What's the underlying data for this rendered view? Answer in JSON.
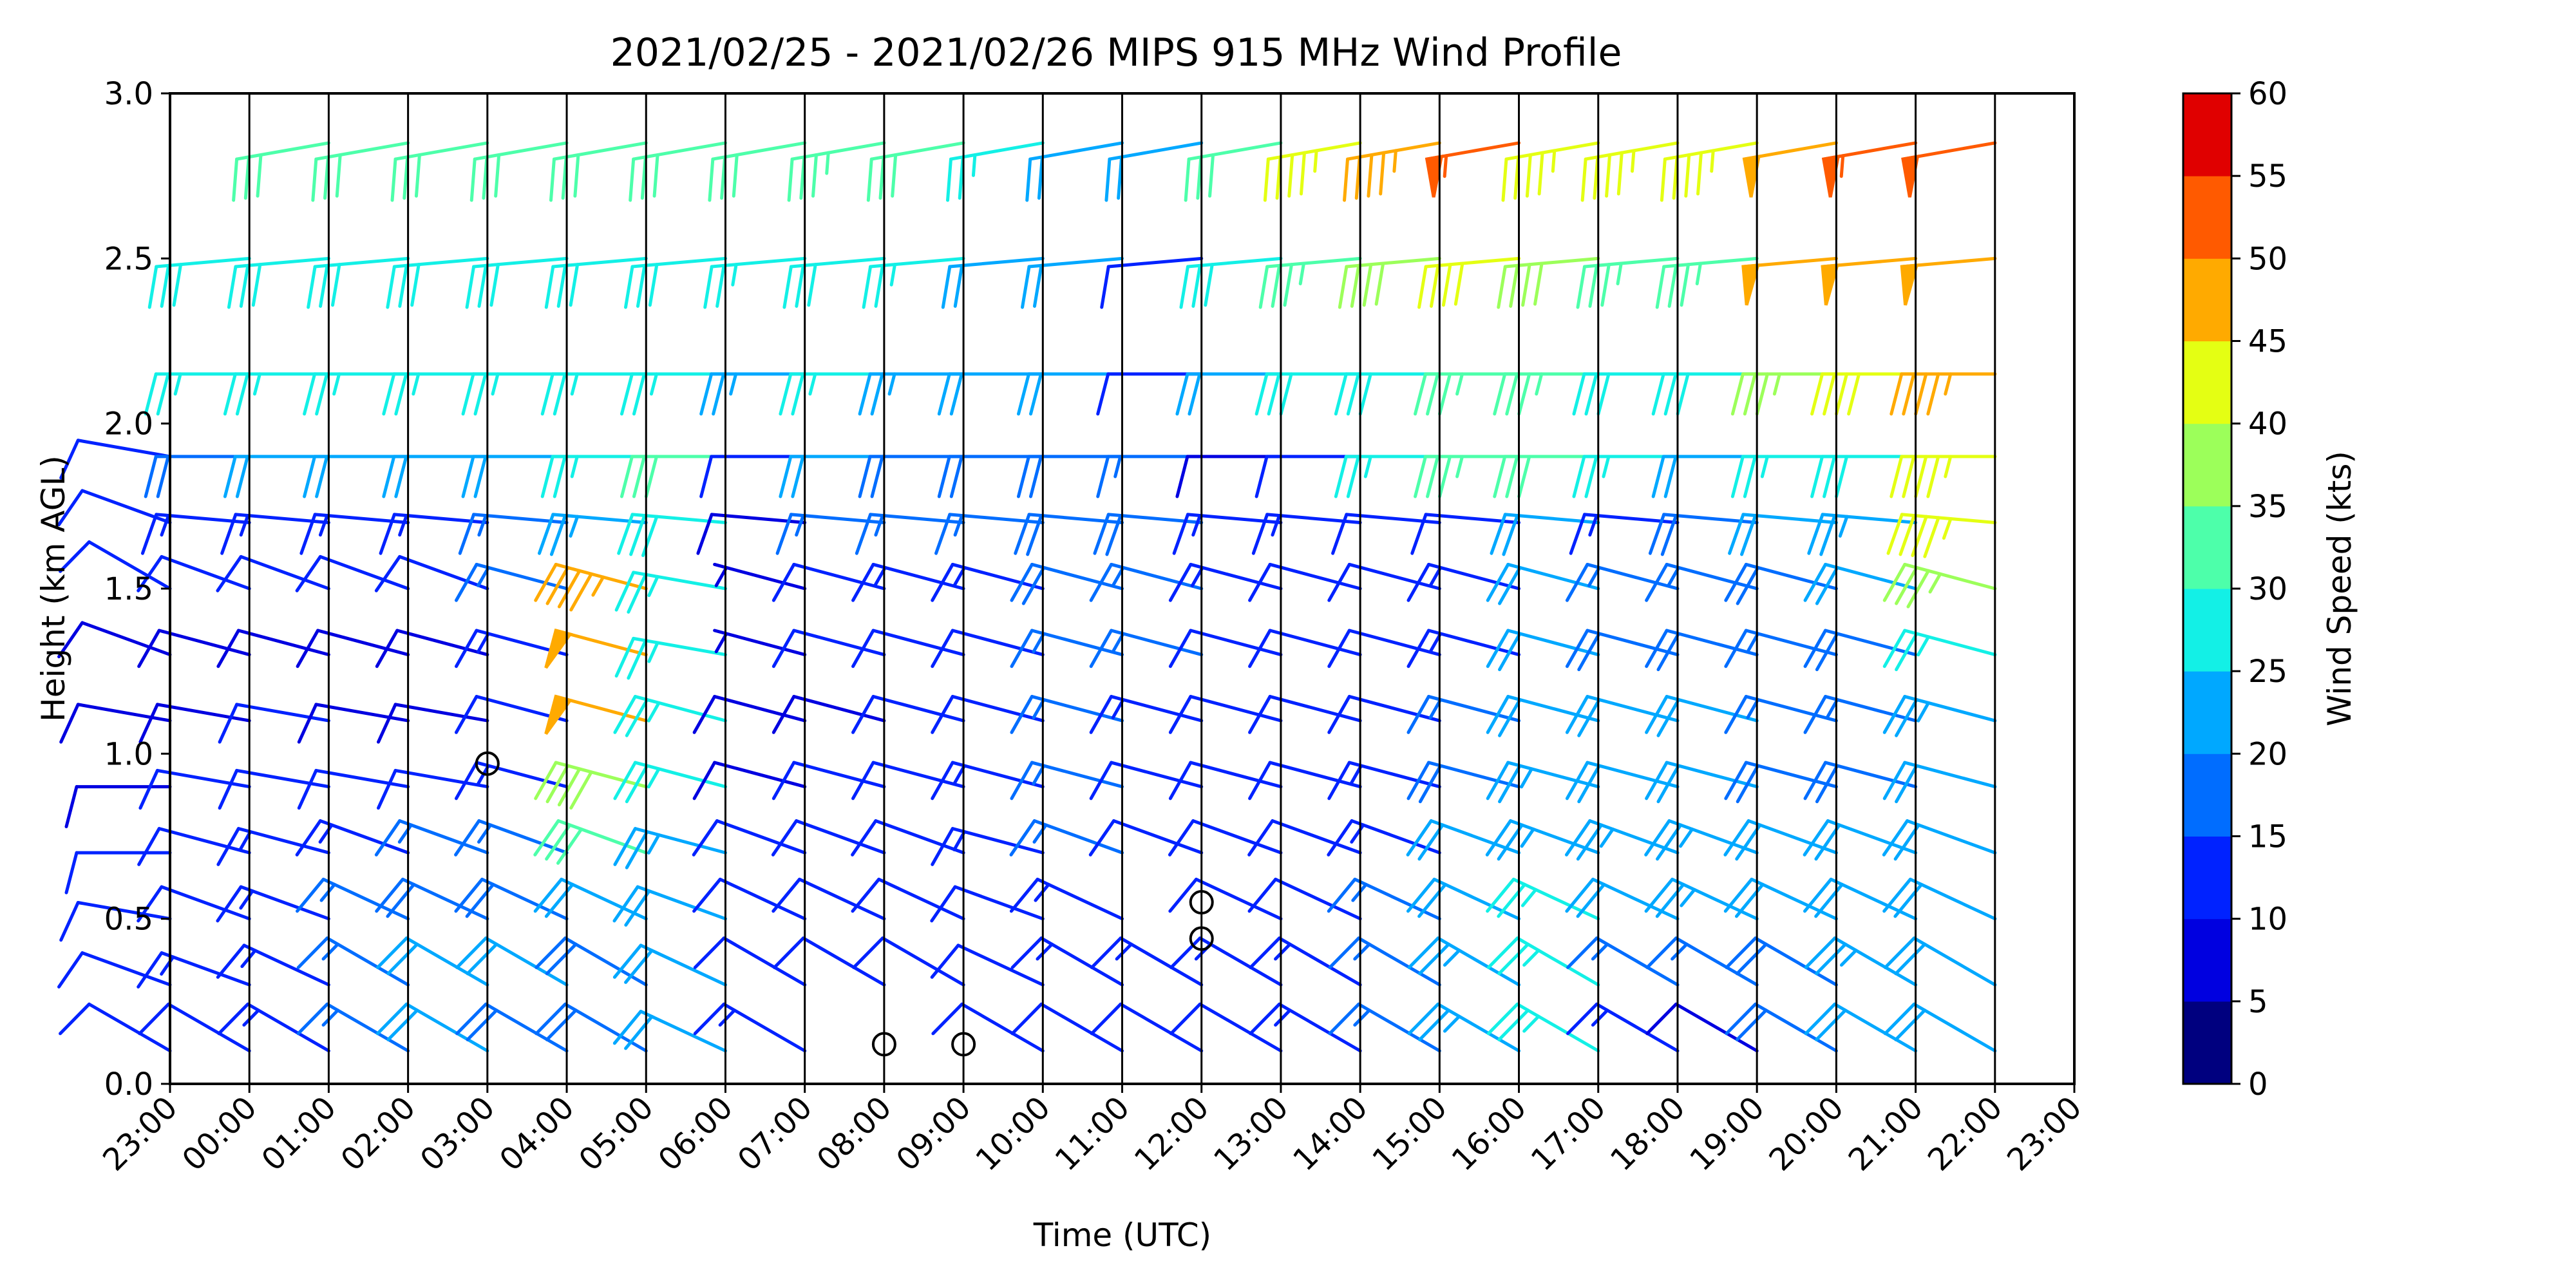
{
  "chart_data": {
    "type": "wind-barb",
    "title": "2021/02/25 - 2021/02/26 MIPS 915 MHz Wind Profile",
    "xlabel": "Time (UTC)",
    "ylabel": "Height (km AGL)",
    "ylim": [
      0,
      3.0
    ],
    "y_ticks": [
      "0.0",
      "0.5",
      "1.0",
      "1.5",
      "2.0",
      "2.5",
      "3.0"
    ],
    "x_ticks": [
      "23:00",
      "00:00",
      "01:00",
      "02:00",
      "03:00",
      "04:00",
      "05:00",
      "06:00",
      "07:00",
      "08:00",
      "09:00",
      "10:00",
      "11:00",
      "12:00",
      "13:00",
      "14:00",
      "15:00",
      "16:00",
      "17:00",
      "18:00",
      "19:00",
      "20:00",
      "21:00",
      "22:00",
      "23:00"
    ],
    "colorbar": {
      "label": "Wind Speed (kts)",
      "ticks": [
        "0",
        "5",
        "10",
        "15",
        "20",
        "25",
        "30",
        "35",
        "40",
        "45",
        "50",
        "55",
        "60"
      ],
      "colors": [
        "#00007f",
        "#0000f1",
        "#004cff",
        "#00b0ff",
        "#29ffce",
        "#7dff7a",
        "#ceff29",
        "#ffc400",
        "#ff6800",
        "#f10800",
        "#7f0000"
      ],
      "bin_colors": [
        "#00007f",
        "#0000e0",
        "#0022ff",
        "#006dff",
        "#00a8ff",
        "#13f0e6",
        "#4dffaa",
        "#9cff5a",
        "#e4ff13",
        "#ffaa00",
        "#ff5a00",
        "#e00000"
      ]
    },
    "grid": "vertical lines at each hour",
    "annotations": "calm-wind circles at 03:00 ~0.97 km, 08:00 ~0.12 km, 09:00 ~0.12 km, 12:00 ~0.44 km and ~0.55 km",
    "series": [
      {
        "time": "23:00",
        "heights_km": [
          0.1,
          0.3,
          0.5,
          0.7,
          0.9,
          1.1,
          1.3,
          1.5,
          1.7,
          1.9
        ],
        "speeds_kts": [
          12,
          11,
          10,
          10,
          9,
          8,
          9,
          10,
          11,
          12
        ],
        "dirs_deg": [
          300,
          290,
          280,
          270,
          270,
          280,
          290,
          300,
          290,
          280
        ]
      },
      {
        "time": "00:00",
        "heights_km": [
          0.1,
          0.3,
          0.5,
          0.7,
          0.9,
          1.1,
          1.3,
          1.5,
          1.7,
          1.9,
          2.15,
          2.5
        ],
        "speeds_kts": [
          12,
          13,
          12,
          11,
          10,
          9,
          8,
          10,
          14,
          18,
          25,
          28
        ],
        "dirs_deg": [
          300,
          290,
          290,
          285,
          280,
          280,
          285,
          290,
          275,
          270,
          270,
          265
        ]
      },
      {
        "time": "01:00",
        "heights_km": [
          0.1,
          0.3,
          0.5,
          0.7,
          0.9,
          1.1,
          1.3,
          1.5,
          1.7,
          1.9,
          2.15,
          2.5,
          2.85
        ],
        "speeds_kts": [
          13,
          14,
          14,
          13,
          12,
          10,
          9,
          10,
          14,
          20,
          26,
          29,
          31
        ],
        "dirs_deg": [
          300,
          295,
          290,
          285,
          280,
          280,
          285,
          290,
          275,
          270,
          270,
          265,
          260
        ]
      },
      {
        "time": "02:00",
        "heights_km": [
          0.1,
          0.3,
          0.5,
          0.7,
          0.9,
          1.1,
          1.3,
          1.5,
          1.7,
          1.9,
          2.15,
          2.5,
          2.85
        ],
        "speeds_kts": [
          16,
          17,
          15,
          14,
          12,
          9,
          8,
          10,
          14,
          20,
          26,
          29,
          31
        ],
        "dirs_deg": [
          300,
          300,
          295,
          290,
          280,
          280,
          285,
          290,
          275,
          270,
          270,
          265,
          260
        ]
      },
      {
        "time": "03:00",
        "heights_km": [
          0.1,
          0.3,
          0.5,
          0.7,
          0.9,
          1.1,
          1.3,
          1.5,
          1.7,
          1.9,
          2.15,
          2.5,
          2.85
        ],
        "speeds_kts": [
          21,
          20,
          18,
          16,
          12,
          8,
          9,
          11,
          13,
          20,
          26,
          29,
          31
        ],
        "dirs_deg": [
          300,
          300,
          295,
          290,
          280,
          280,
          285,
          290,
          275,
          270,
          270,
          265,
          260
        ]
      },
      {
        "time": "04:00",
        "heights_km": [
          0.1,
          0.3,
          0.5,
          0.7,
          0.9,
          1.1,
          1.3,
          1.5,
          1.7,
          1.9,
          2.15,
          2.5,
          2.85
        ],
        "speeds_kts": [
          19,
          20,
          18,
          17,
          14,
          12,
          14,
          16,
          16,
          21,
          26,
          29,
          31
        ],
        "dirs_deg": [
          300,
          300,
          295,
          290,
          285,
          285,
          285,
          285,
          275,
          270,
          270,
          265,
          260
        ]
      },
      {
        "time": "05:00",
        "heights_km": [
          0.1,
          0.3,
          0.5,
          0.7,
          0.9,
          1.1,
          1.3,
          1.5,
          1.7,
          1.9,
          2.15,
          2.5,
          2.85
        ],
        "speeds_kts": [
          18,
          19,
          22,
          30,
          38,
          49,
          48,
          45,
          24,
          26,
          27,
          29,
          31
        ],
        "dirs_deg": [
          300,
          300,
          295,
          290,
          285,
          285,
          285,
          285,
          275,
          270,
          270,
          265,
          260
        ]
      },
      {
        "time": "06:00",
        "heights_km": [
          0.1,
          0.3,
          0.5,
          0.7,
          0.9,
          1.1,
          1.3,
          1.5,
          1.7,
          1.9,
          2.15,
          2.5,
          2.85
        ],
        "speeds_kts": [
          20,
          21,
          22,
          24,
          27,
          26,
          25,
          27,
          28,
          30,
          27,
          29,
          31
        ],
        "dirs_deg": [
          295,
          295,
          290,
          285,
          285,
          285,
          280,
          280,
          275,
          270,
          270,
          265,
          260
        ]
      },
      {
        "time": "07:00",
        "heights_km": [
          0.1,
          0.3,
          0.5,
          0.7,
          0.9,
          1.1,
          1.3,
          1.5,
          1.7,
          1.9,
          2.15,
          2.5,
          2.85
        ],
        "speeds_kts": [
          13,
          12,
          10,
          11,
          9,
          8,
          7,
          6,
          9,
          12,
          24,
          27,
          32
        ],
        "dirs_deg": [
          300,
          300,
          295,
          290,
          285,
          285,
          285,
          285,
          275,
          270,
          270,
          265,
          260
        ]
      },
      {
        "time": "08:00",
        "heights_km": [
          0.3,
          0.5,
          0.7,
          0.9,
          1.1,
          1.3,
          1.5,
          1.7,
          1.9,
          2.15,
          2.5,
          2.85
        ],
        "speeds_kts": [
          12,
          12,
          11,
          10,
          9,
          10,
          12,
          15,
          20,
          25,
          28,
          33
        ],
        "dirs_deg": [
          300,
          295,
          290,
          285,
          285,
          285,
          285,
          275,
          270,
          270,
          265,
          260
        ]
      },
      {
        "time": "09:00",
        "heights_km": [
          0.3,
          0.5,
          0.7,
          0.9,
          1.1,
          1.3,
          1.5,
          1.7,
          1.9,
          2.15,
          2.5,
          2.85
        ],
        "speeds_kts": [
          11,
          12,
          12,
          11,
          10,
          11,
          13,
          16,
          19,
          23,
          27,
          31
        ],
        "dirs_deg": [
          300,
          295,
          290,
          285,
          285,
          285,
          285,
          275,
          270,
          270,
          265,
          260
        ]
      },
      {
        "time": "10:00",
        "heights_km": [
          0.1,
          0.3,
          0.5,
          0.7,
          0.9,
          1.1,
          1.3,
          1.5,
          1.7,
          1.9,
          2.15,
          2.5,
          2.85
        ],
        "speeds_kts": [
          11,
          12,
          12,
          13,
          13,
          12,
          12,
          13,
          15,
          18,
          20,
          22,
          25
        ],
        "dirs_deg": [
          300,
          295,
          290,
          285,
          285,
          285,
          285,
          285,
          275,
          270,
          270,
          265,
          260
        ]
      },
      {
        "time": "11:00",
        "heights_km": [
          0.1,
          0.3,
          0.5,
          0.7,
          0.9,
          1.1,
          1.3,
          1.5,
          1.7,
          1.9,
          2.15,
          2.5,
          2.85
        ],
        "speeds_kts": [
          12,
          13,
          14,
          15,
          17,
          17,
          17,
          18,
          19,
          19,
          21,
          20,
          22
        ],
        "dirs_deg": [
          300,
          300,
          295,
          290,
          285,
          285,
          285,
          285,
          275,
          270,
          270,
          265,
          260
        ]
      },
      {
        "time": "12:00",
        "heights_km": [
          0.1,
          0.3,
          0.7,
          0.9,
          1.1,
          1.3,
          1.5,
          1.7,
          1.9,
          2.15,
          2.5,
          2.85
        ],
        "speeds_kts": [
          12,
          13,
          12,
          12,
          13,
          15,
          17,
          18,
          15,
          12,
          10,
          20
        ],
        "dirs_deg": [
          300,
          300,
          290,
          285,
          285,
          285,
          285,
          275,
          270,
          270,
          265,
          260
        ]
      },
      {
        "time": "13:00",
        "heights_km": [
          0.1,
          0.3,
          0.5,
          0.7,
          0.9,
          1.1,
          1.3,
          1.5,
          1.7,
          1.9,
          2.15,
          2.5,
          2.85
        ],
        "speeds_kts": [
          12,
          13,
          11,
          11,
          11,
          12,
          12,
          13,
          14,
          9,
          20,
          28,
          32
        ],
        "dirs_deg": [
          300,
          300,
          295,
          290,
          285,
          285,
          285,
          285,
          275,
          270,
          270,
          265,
          260
        ]
      },
      {
        "time": "14:00",
        "heights_km": [
          0.1,
          0.3,
          0.5,
          0.7,
          0.9,
          1.1,
          1.3,
          1.5,
          1.7,
          1.9,
          2.15,
          2.5,
          2.85
        ],
        "speeds_kts": [
          13,
          13,
          12,
          11,
          11,
          12,
          12,
          12,
          13,
          11,
          28,
          34,
          44
        ],
        "dirs_deg": [
          300,
          300,
          295,
          290,
          285,
          285,
          285,
          285,
          275,
          270,
          270,
          265,
          260
        ]
      },
      {
        "time": "15:00",
        "heights_km": [
          0.1,
          0.3,
          0.5,
          0.7,
          0.9,
          1.1,
          1.3,
          1.5,
          1.7,
          1.9,
          2.15,
          2.5,
          2.85
        ],
        "speeds_kts": [
          17,
          17,
          16,
          14,
          13,
          12,
          11,
          11,
          10,
          25,
          28,
          38,
          47
        ],
        "dirs_deg": [
          300,
          300,
          295,
          290,
          285,
          285,
          285,
          285,
          275,
          270,
          270,
          265,
          260
        ]
      },
      {
        "time": "16:00",
        "heights_km": [
          0.1,
          0.3,
          0.5,
          0.7,
          0.9,
          1.1,
          1.3,
          1.5,
          1.7,
          1.9,
          2.15,
          2.5,
          2.85
        ],
        "speeds_kts": [
          23,
          23,
          22,
          20,
          18,
          15,
          14,
          13,
          11,
          33,
          33,
          42,
          53
        ],
        "dirs_deg": [
          300,
          300,
          295,
          290,
          285,
          285,
          285,
          285,
          275,
          270,
          270,
          265,
          260
        ]
      },
      {
        "time": "17:00",
        "heights_km": [
          0.1,
          0.3,
          0.5,
          0.7,
          0.9,
          1.1,
          1.3,
          1.5,
          1.7,
          1.9,
          2.15,
          2.5,
          2.85
        ],
        "speeds_kts": [
          25,
          25,
          25,
          24,
          23,
          22,
          22,
          22,
          20,
          30,
          33,
          38,
          43
        ],
        "dirs_deg": [
          300,
          300,
          295,
          290,
          285,
          285,
          285,
          285,
          275,
          270,
          270,
          265,
          260
        ]
      },
      {
        "time": "18:00",
        "heights_km": [
          0.1,
          0.3,
          0.5,
          0.7,
          0.9,
          1.1,
          1.3,
          1.5,
          1.7,
          1.9,
          2.15,
          2.5,
          2.85
        ],
        "speeds_kts": [
          13,
          17,
          22,
          24,
          22,
          20,
          18,
          15,
          13,
          26,
          28,
          34,
          43
        ],
        "dirs_deg": [
          300,
          300,
          295,
          290,
          285,
          285,
          285,
          285,
          275,
          270,
          270,
          265,
          260
        ]
      },
      {
        "time": "19:00",
        "heights_km": [
          0.1,
          0.3,
          0.5,
          0.7,
          0.9,
          1.1,
          1.3,
          1.5,
          1.7,
          1.9,
          2.15,
          2.5,
          2.85
        ],
        "speeds_kts": [
          9,
          15,
          23,
          24,
          22,
          20,
          18,
          17,
          19,
          22,
          28,
          34,
          44
        ],
        "dirs_deg": [
          300,
          300,
          295,
          290,
          285,
          285,
          285,
          285,
          275,
          270,
          270,
          265,
          260
        ]
      },
      {
        "time": "20:00",
        "heights_km": [
          0.1,
          0.3,
          0.5,
          0.7,
          0.9,
          1.1,
          1.3,
          1.5,
          1.7,
          1.9,
          2.15,
          2.5,
          2.85
        ],
        "speeds_kts": [
          18,
          19,
          20,
          20,
          18,
          17,
          16,
          19,
          22,
          26,
          37,
          48,
          48
        ],
        "dirs_deg": [
          300,
          300,
          295,
          290,
          285,
          285,
          285,
          285,
          275,
          270,
          270,
          265,
          260
        ]
      },
      {
        "time": "21:00",
        "heights_km": [
          0.1,
          0.3,
          0.5,
          0.7,
          0.9,
          1.1,
          1.3,
          1.5,
          1.7,
          1.9,
          2.15,
          2.5,
          2.85
        ],
        "speeds_kts": [
          22,
          23,
          22,
          20,
          18,
          16,
          18,
          20,
          24,
          28,
          40,
          48,
          53
        ],
        "dirs_deg": [
          300,
          300,
          295,
          290,
          285,
          285,
          285,
          285,
          275,
          270,
          270,
          265,
          260
        ]
      },
      {
        "time": "22:00",
        "heights_km": [
          0.1,
          0.3,
          0.5,
          0.7,
          0.9,
          1.1,
          1.3,
          1.5,
          1.7,
          1.9,
          2.15,
          2.5,
          2.85
        ],
        "speeds_kts": [
          20,
          20,
          21,
          21,
          22,
          24,
          26,
          36,
          43,
          44,
          45,
          48,
          52
        ],
        "dirs_deg": [
          300,
          300,
          295,
          290,
          285,
          285,
          285,
          285,
          275,
          270,
          270,
          265,
          260
        ]
      }
    ]
  }
}
